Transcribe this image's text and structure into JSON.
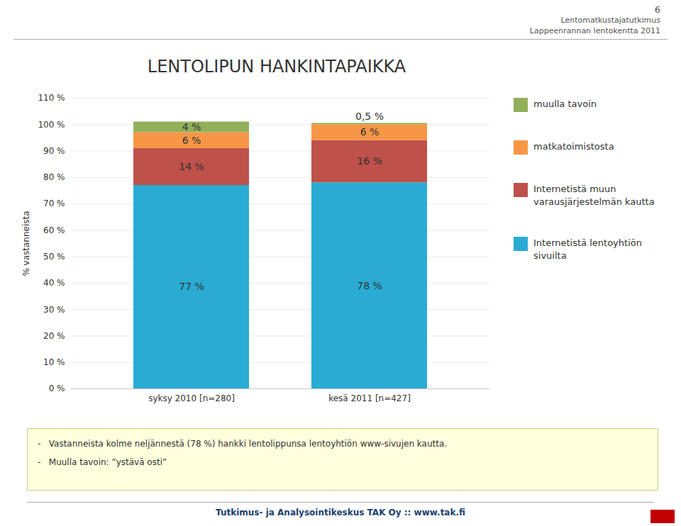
{
  "chart_data": {
    "type": "bar",
    "stacked": true,
    "title": "LENTOLIPUN HANKINTAPAIKKA",
    "ylabel": "% vastanneista",
    "categories": [
      "syksy 2010 [n=280]",
      "kesä 2011 [n=427]"
    ],
    "series": [
      {
        "name": "Internetistä lentoyhtiön\nsivuilta",
        "color": "#29ABD4",
        "values": [
          77,
          78
        ],
        "value_labels": [
          "77 %",
          "78 %"
        ]
      },
      {
        "name": "Internetistä muun\nvarausjärjestelmän kautta",
        "color": "#BE514A",
        "values": [
          14,
          16
        ],
        "value_labels": [
          "14 %",
          "16 %"
        ]
      },
      {
        "name": "matkatoimistosta",
        "color": "#F79646",
        "values": [
          6,
          6
        ],
        "value_labels": [
          "6 %",
          "6 %"
        ]
      },
      {
        "name": "muulla tavoin",
        "color": "#92AF5A",
        "values": [
          4,
          0.5
        ],
        "value_labels": [
          "4 %",
          "0,5 %"
        ]
      }
    ],
    "ylim": [
      0,
      110
    ],
    "yticks": [
      {
        "value": 0,
        "label": "0 %"
      },
      {
        "value": 10,
        "label": "10 %"
      },
      {
        "value": 20,
        "label": "20 %"
      },
      {
        "value": 30,
        "label": "30 %"
      },
      {
        "value": 40,
        "label": "40 %"
      },
      {
        "value": 50,
        "label": "50 %"
      },
      {
        "value": 60,
        "label": "60 %"
      },
      {
        "value": 70,
        "label": "70 %"
      },
      {
        "value": 80,
        "label": "80 %"
      },
      {
        "value": 90,
        "label": "90 %"
      },
      {
        "value": 100,
        "label": "100 %"
      },
      {
        "value": 110,
        "label": "110 %"
      }
    ],
    "grid": true,
    "data_labels": true,
    "legend": "right",
    "annotations": [
      "6",
      "Lentomatkustajatutkimus",
      "Lappeenrannan lentokentta 2011",
      "-   Vastanneista kolme neljännestä (78 %) hankki lentolippunsa lentoyhtiön www-sivujen kautta.",
      "-   Muulla tavoin: ”ystävä osti”",
      "Tutkimus- ja Analysointikeskus TAK Oy :: www.tak.fi"
    ]
  }
}
